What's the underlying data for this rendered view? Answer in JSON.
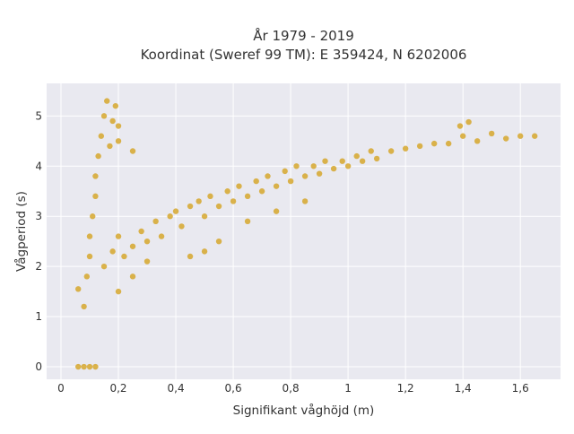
{
  "chart_data": {
    "type": "scatter",
    "title": "År 1979 - 2019",
    "subtitle": "Koordinat (Sweref 99 TM): E 359424, N 6202006",
    "xlabel": "Signifikant våghöjd (m)",
    "ylabel": "Vågperiod (s)",
    "xlim": [
      -0.05,
      1.74
    ],
    "ylim": [
      -0.25,
      5.65
    ],
    "x_ticks": [
      0,
      0.2,
      0.4,
      0.6,
      0.8,
      1,
      1.2,
      1.4,
      1.6
    ],
    "x_tick_labels": [
      "0",
      "0,2",
      "0,4",
      "0,6",
      "0,8",
      "1",
      "1,2",
      "1,4",
      "1,6"
    ],
    "y_ticks": [
      0,
      1,
      2,
      3,
      4,
      5
    ],
    "y_tick_labels": [
      "0",
      "1",
      "2",
      "3",
      "4",
      "5"
    ],
    "grid": true,
    "colors": {
      "marker": "#d4a321",
      "plot_bg": "#e9e9f0",
      "grid": "#ffffff"
    },
    "series": [
      {
        "points": [
          [
            0.06,
            1.55
          ],
          [
            0.08,
            1.2
          ],
          [
            0.09,
            1.8
          ],
          [
            0.1,
            2.2
          ],
          [
            0.1,
            2.6
          ],
          [
            0.11,
            3.0
          ],
          [
            0.12,
            3.4
          ],
          [
            0.12,
            3.8
          ],
          [
            0.13,
            4.2
          ],
          [
            0.14,
            4.6
          ],
          [
            0.15,
            5.0
          ],
          [
            0.16,
            5.3
          ],
          [
            0.17,
            4.4
          ],
          [
            0.18,
            4.9
          ],
          [
            0.19,
            5.2
          ],
          [
            0.2,
            4.8
          ],
          [
            0.2,
            4.5
          ],
          [
            0.15,
            2.0
          ],
          [
            0.18,
            2.3
          ],
          [
            0.2,
            2.6
          ],
          [
            0.22,
            2.2
          ],
          [
            0.25,
            2.4
          ],
          [
            0.28,
            2.7
          ],
          [
            0.3,
            2.5
          ],
          [
            0.33,
            2.9
          ],
          [
            0.35,
            2.6
          ],
          [
            0.38,
            3.0
          ],
          [
            0.4,
            3.1
          ],
          [
            0.42,
            2.8
          ],
          [
            0.45,
            3.2
          ],
          [
            0.48,
            3.3
          ],
          [
            0.5,
            3.0
          ],
          [
            0.52,
            3.4
          ],
          [
            0.55,
            3.2
          ],
          [
            0.58,
            3.5
          ],
          [
            0.6,
            3.3
          ],
          [
            0.62,
            3.6
          ],
          [
            0.65,
            3.4
          ],
          [
            0.68,
            3.7
          ],
          [
            0.7,
            3.5
          ],
          [
            0.72,
            3.8
          ],
          [
            0.75,
            3.6
          ],
          [
            0.78,
            3.9
          ],
          [
            0.8,
            3.7
          ],
          [
            0.82,
            4.0
          ],
          [
            0.85,
            3.8
          ],
          [
            0.88,
            4.0
          ],
          [
            0.9,
            3.85
          ],
          [
            0.92,
            4.1
          ],
          [
            0.95,
            3.95
          ],
          [
            0.98,
            4.1
          ],
          [
            1.0,
            4.0
          ],
          [
            1.03,
            4.2
          ],
          [
            1.05,
            4.1
          ],
          [
            1.08,
            4.3
          ],
          [
            1.1,
            4.15
          ],
          [
            1.15,
            4.3
          ],
          [
            1.2,
            4.35
          ],
          [
            1.25,
            4.4
          ],
          [
            1.3,
            4.45
          ],
          [
            1.35,
            4.45
          ],
          [
            1.4,
            4.6
          ],
          [
            1.45,
            4.5
          ],
          [
            1.5,
            4.65
          ],
          [
            1.55,
            4.55
          ],
          [
            1.6,
            4.6
          ],
          [
            1.65,
            4.6
          ],
          [
            1.39,
            4.8
          ],
          [
            1.42,
            4.88
          ],
          [
            0.06,
            0.0
          ],
          [
            0.08,
            0.0
          ],
          [
            0.1,
            0.0
          ],
          [
            0.12,
            0.0
          ],
          [
            0.25,
            4.3
          ],
          [
            0.2,
            1.5
          ],
          [
            0.25,
            1.8
          ],
          [
            0.5,
            2.3
          ],
          [
            0.45,
            2.2
          ],
          [
            0.3,
            2.1
          ],
          [
            0.55,
            2.5
          ],
          [
            0.65,
            2.9
          ],
          [
            0.75,
            3.1
          ],
          [
            0.85,
            3.3
          ]
        ]
      }
    ]
  }
}
